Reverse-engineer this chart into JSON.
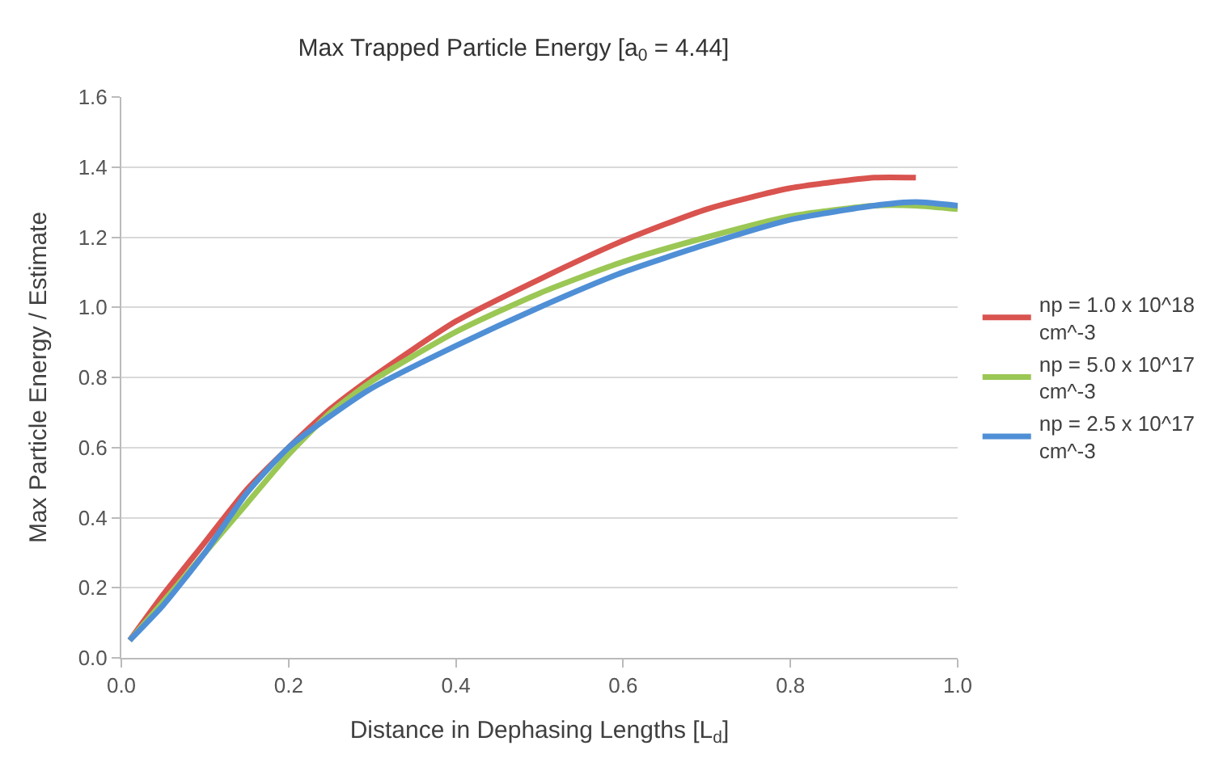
{
  "chart_data": {
    "type": "line",
    "title": "Max Trapped Particle Energy [a$_{0}$ = 4.44]",
    "xlabel": "Distance in Dephasing Lengths [L$_{d}$]",
    "ylabel": "Max Particle Energy / Estimate",
    "xlim": [
      0,
      1.0
    ],
    "xticks": [
      {
        "value": 0,
        "label": "0.0"
      },
      0.2,
      0.4,
      0.6,
      0.8,
      {
        "value": 1.0,
        "label": "1.0"
      }
    ],
    "ylim": [
      0,
      1.6
    ],
    "yticks": [
      {
        "value": 0,
        "label": "0.0"
      },
      0.2,
      0.4,
      0.6,
      0.8,
      {
        "value": 1.0,
        "label": "1.0"
      },
      1.2,
      1.4,
      1.6
    ],
    "grid": "y",
    "legend": "right",
    "marker": "none",
    "line_style": "solid",
    "series": [
      {
        "name": "np = 1.0 x 10^18 cm^-3",
        "color": "#d9534f",
        "x": [
          0.01,
          0.05,
          0.1,
          0.15,
          0.2,
          0.25,
          0.3,
          0.4,
          0.5,
          0.6,
          0.7,
          0.8,
          0.9,
          0.95
        ],
        "values": [
          0.05,
          0.18,
          0.33,
          0.48,
          0.6,
          0.71,
          0.8,
          0.96,
          1.08,
          1.19,
          1.28,
          1.34,
          1.37,
          1.37
        ]
      },
      {
        "name": "np = 5.0 x 10^17 cm^-3",
        "color": "#9bc755",
        "x": [
          0.01,
          0.05,
          0.1,
          0.15,
          0.2,
          0.25,
          0.3,
          0.4,
          0.5,
          0.6,
          0.7,
          0.8,
          0.9,
          0.95,
          1.0
        ],
        "values": [
          0.05,
          0.16,
          0.3,
          0.44,
          0.58,
          0.7,
          0.79,
          0.93,
          1.04,
          1.13,
          1.2,
          1.26,
          1.29,
          1.29,
          1.28
        ]
      },
      {
        "name": "np = 2.5 x 10^17 cm^-3",
        "color": "#4f8fd6",
        "x": [
          0.01,
          0.05,
          0.1,
          0.15,
          0.2,
          0.25,
          0.3,
          0.4,
          0.5,
          0.6,
          0.7,
          0.8,
          0.9,
          0.95,
          1.0
        ],
        "values": [
          0.05,
          0.15,
          0.3,
          0.47,
          0.6,
          0.69,
          0.77,
          0.89,
          1.0,
          1.1,
          1.18,
          1.25,
          1.29,
          1.3,
          1.29
        ]
      }
    ]
  }
}
